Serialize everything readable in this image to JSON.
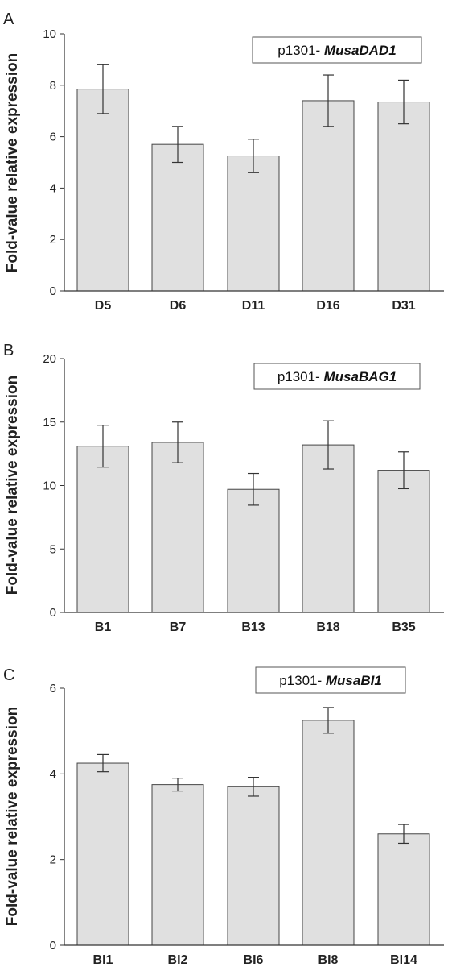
{
  "chart_data": [
    {
      "type": "bar",
      "panel": "A",
      "legend": {
        "prefix": "p1301- ",
        "gene": "MusaDAD1",
        "position": "top-right"
      },
      "ylabel": "Fold-value relative expression",
      "ylim": [
        0,
        10
      ],
      "yticks": [
        "0",
        "2",
        "4",
        "6",
        "8",
        "10"
      ],
      "categories": [
        "D5",
        "D6",
        "D11",
        "D16",
        "D31"
      ],
      "values": [
        7.85,
        5.7,
        5.25,
        7.4,
        7.35
      ],
      "errors": [
        0.95,
        0.7,
        0.65,
        1.0,
        0.85
      ],
      "bar_color": "#e0e0e0",
      "grid": false
    },
    {
      "type": "bar",
      "panel": "B",
      "legend": {
        "prefix": "p1301- ",
        "gene": "MusaBAG1",
        "position": "top-right"
      },
      "ylabel": "Fold-value relative expression",
      "ylim": [
        0,
        20
      ],
      "yticks": [
        "0",
        "5",
        "10",
        "15",
        "20"
      ],
      "categories": [
        "B1",
        "B7",
        "B13",
        "B18",
        "B35"
      ],
      "values": [
        13.1,
        13.4,
        9.7,
        13.2,
        11.2
      ],
      "errors": [
        1.65,
        1.6,
        1.25,
        1.9,
        1.45
      ],
      "bar_color": "#e0e0e0",
      "grid": false
    },
    {
      "type": "bar",
      "panel": "C",
      "legend": {
        "prefix": "p1301- ",
        "gene": "MusaBI1",
        "position": "top-right"
      },
      "ylabel": "Fold-value relative expression",
      "ylim": [
        0,
        6
      ],
      "yticks": [
        "0",
        "2",
        "4",
        "6"
      ],
      "categories": [
        "BI1",
        "BI2",
        "BI6",
        "BI8",
        "BI14"
      ],
      "values": [
        4.25,
        3.75,
        3.7,
        5.25,
        2.6
      ],
      "errors": [
        0.2,
        0.15,
        0.22,
        0.3,
        0.22
      ],
      "bar_color": "#e0e0e0",
      "grid": false
    }
  ]
}
